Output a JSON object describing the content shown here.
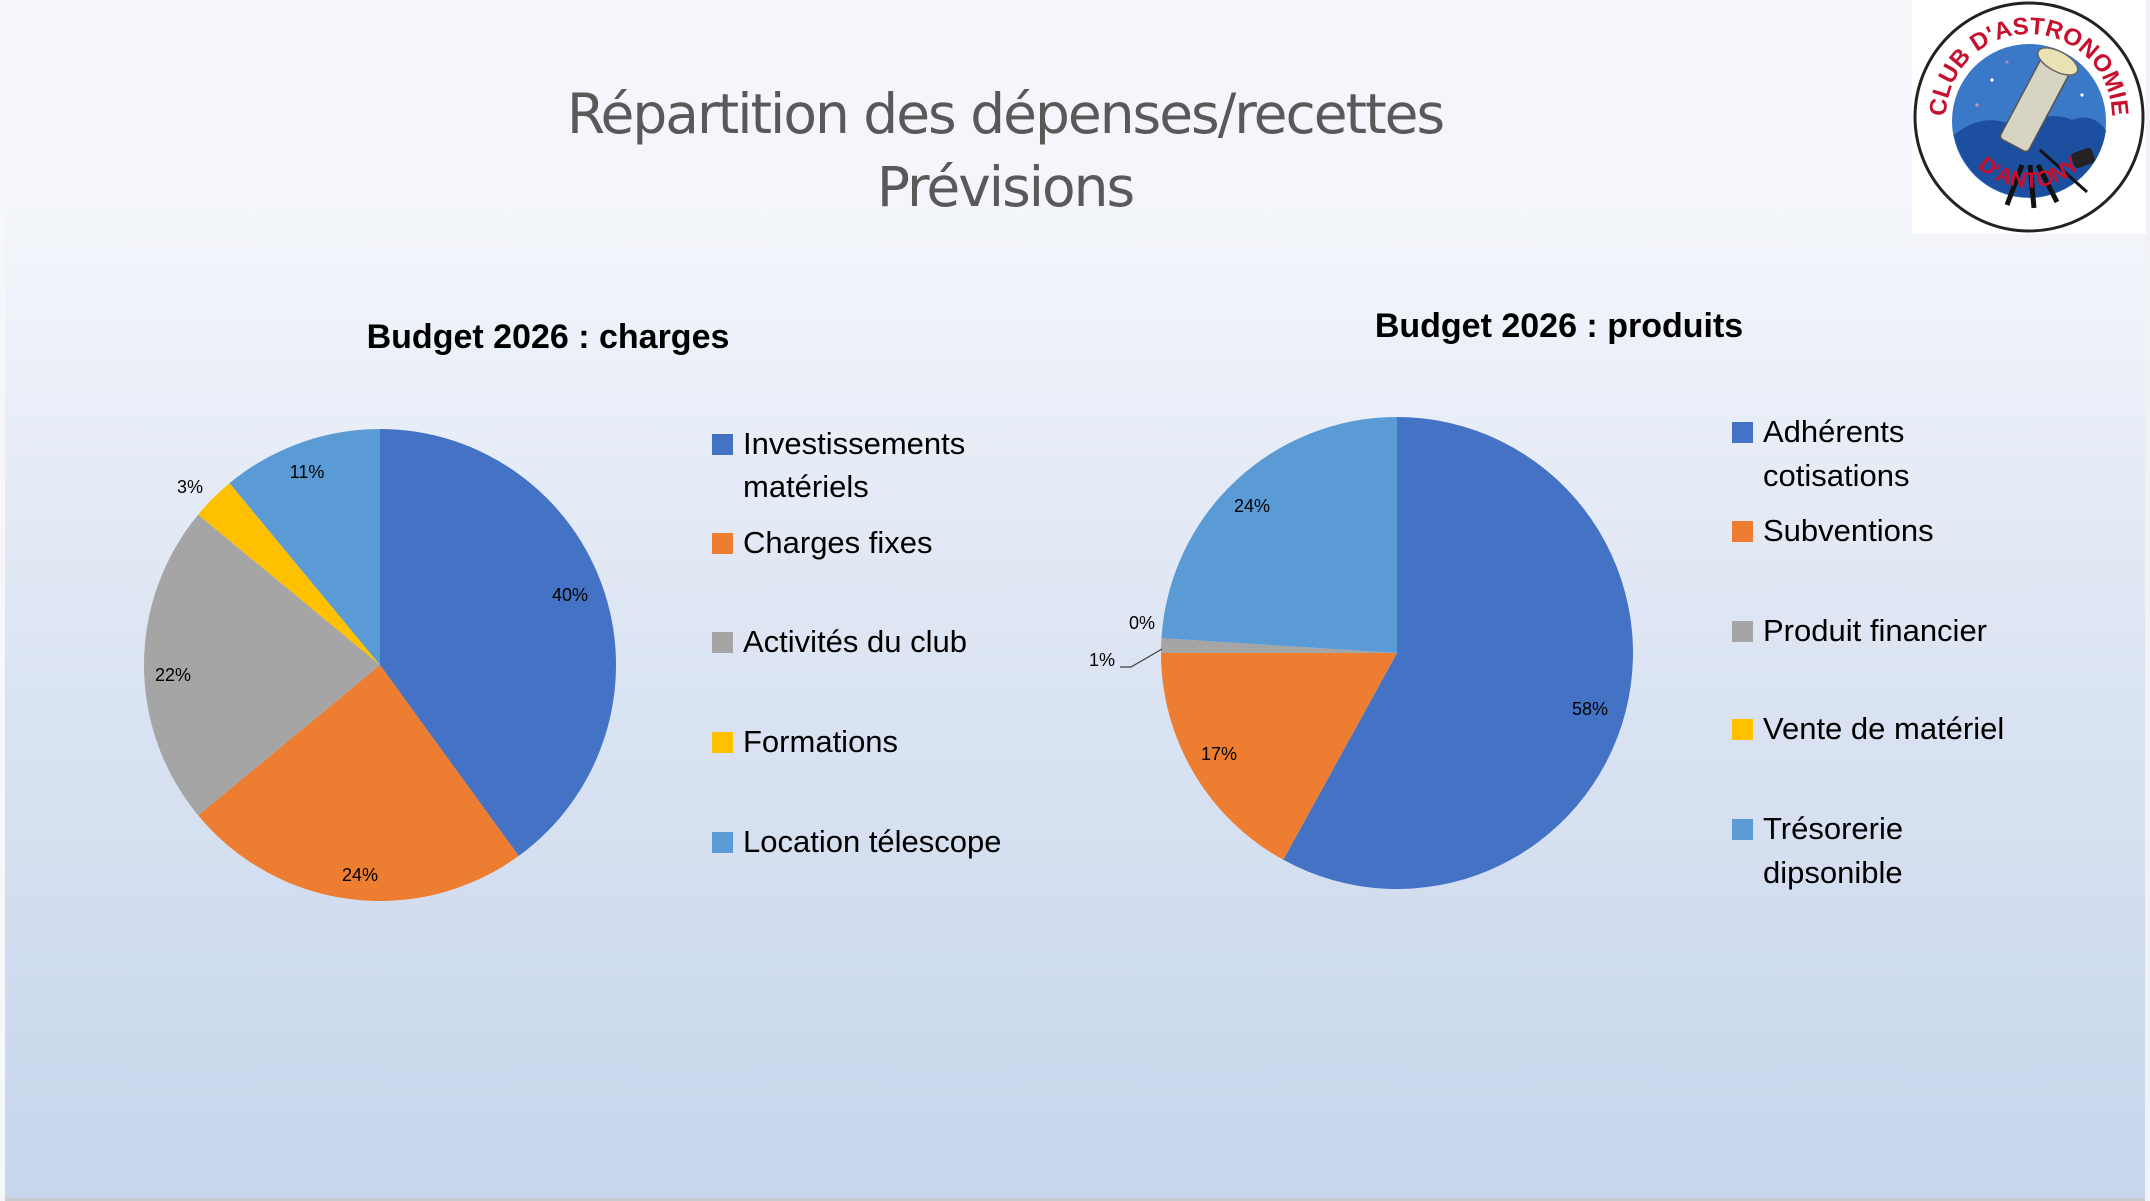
{
  "slide": {
    "title_line1": "Répartition des dépenses/recettes",
    "title_line2": "Prévisions"
  },
  "logo": {
    "text_top": "CLUB D'ASTRONOMIE",
    "text_bottom": "D'ANTONY",
    "icon": "telescope-icon"
  },
  "chart_data": [
    {
      "type": "pie",
      "title": "Budget 2026 : charges",
      "categories": [
        "Investissements matériels",
        "Charges fixes",
        "Activités du club",
        "Formations",
        "Location télescope"
      ],
      "legend_lines": [
        [
          "Investissements",
          "matériels"
        ],
        [
          "Charges fixes"
        ],
        [
          "Activités du club"
        ],
        [
          "Formations"
        ],
        [
          "Location télescope"
        ]
      ],
      "values": [
        40,
        24,
        22,
        3,
        11
      ],
      "labels": [
        "40%",
        "24%",
        "22%",
        "3%",
        "11%"
      ],
      "colors": [
        "#4472c4",
        "#ed7d31",
        "#a5a5a5",
        "#ffc000",
        "#5b9bd5"
      ],
      "start_angle_deg": 0,
      "direction": "clockwise",
      "legend_position": "right"
    },
    {
      "type": "pie",
      "title": "Budget 2026 : produits",
      "categories": [
        "Adhérents cotisations",
        "Subventions",
        "Produit  financier",
        "Vente de matériel",
        "Trésorerie dipsonible"
      ],
      "legend_lines": [
        [
          "Adhérents",
          "cotisations"
        ],
        [
          "Subventions"
        ],
        [
          "Produit  financier"
        ],
        [
          "Vente de matériel"
        ],
        [
          "Trésorerie",
          "dipsonible"
        ]
      ],
      "values": [
        58,
        17,
        1,
        0,
        24
      ],
      "labels": [
        "58%",
        "17%",
        "1%",
        "0%",
        "24%"
      ],
      "colors": [
        "#4472c4",
        "#ed7d31",
        "#a5a5a5",
        "#ffc000",
        "#5b9bd5"
      ],
      "start_angle_deg": 0,
      "direction": "clockwise",
      "legend_position": "right"
    }
  ]
}
